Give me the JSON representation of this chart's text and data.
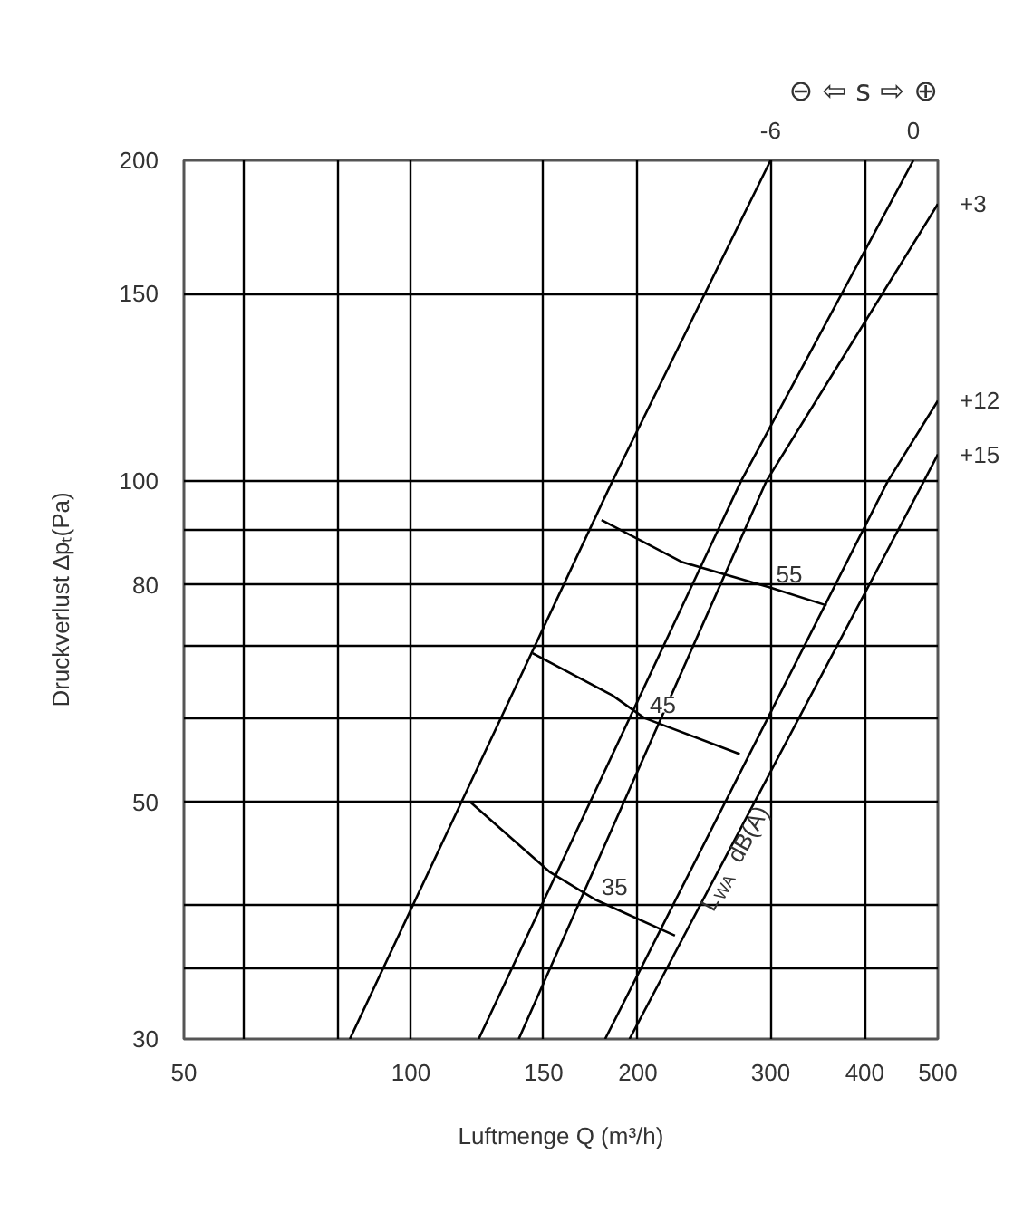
{
  "chart_data": {
    "type": "line",
    "xlabel": "Luftmenge Q (m³/h)",
    "ylabel": "Druckverlust ∆pₜ(Pa)",
    "log": "xy",
    "grid": true,
    "xlim": [
      50,
      500
    ],
    "ylim": [
      30,
      200
    ],
    "xticks": [
      50,
      {
        "value": 60,
        "label": null
      },
      {
        "value": 80,
        "label": null
      },
      100,
      150,
      200,
      300,
      400,
      500
    ],
    "yticks": [
      30,
      {
        "value": 35,
        "label": null
      },
      {
        "value": 40,
        "label": null
      },
      50,
      {
        "value": 60,
        "label": null
      },
      {
        "value": 70,
        "label": null
      },
      80,
      {
        "value": 90,
        "label": null
      },
      100,
      150,
      200
    ],
    "series": [
      {
        "name": "-6",
        "color": "#000000",
        "x": [
          83,
          185,
          300
        ],
        "values": [
          30,
          100,
          200
        ]
      },
      {
        "name": "0",
        "color": "#000000",
        "x": [
          123,
          274,
          464
        ],
        "values": [
          30,
          100,
          200
        ]
      },
      {
        "name": "+3",
        "color": "#000000",
        "x": [
          139,
          296,
          500
        ],
        "values": [
          30,
          100,
          182
        ]
      },
      {
        "name": "+12",
        "color": "#000000",
        "x": [
          181,
          429,
          500
        ],
        "values": [
          30,
          100,
          119
        ]
      },
      {
        "name": "+15",
        "color": "#000000",
        "x": [
          195,
          479,
          500
        ],
        "values": [
          30,
          100,
          106
        ]
      },
      {
        "name": "35",
        "color": "#000000",
        "x": [
          120,
          153,
          176,
          224
        ],
        "values": [
          50,
          43,
          40.5,
          37.5
        ]
      },
      {
        "name": "45",
        "color": "#000000",
        "x": [
          145,
          185,
          204,
          273
        ],
        "values": [
          69,
          63,
          60,
          55.5
        ]
      },
      {
        "name": "55",
        "color": "#000000",
        "x": [
          179,
          229,
          300,
          356
        ],
        "values": [
          92,
          84,
          79.5,
          76.5
        ]
      }
    ],
    "annotations": [
      "⊖ ⇦ s ⇨ ⊕",
      {
        "text": "L$_{WA}$ dB(A)",
        "x": 274,
        "y": 45.5
      }
    ]
  }
}
